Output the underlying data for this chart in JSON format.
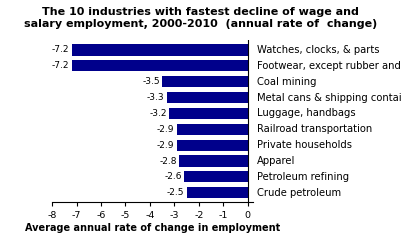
{
  "title": "The 10 industries with fastest decline of wage and\nsalary employment, 2000-2010  (annual rate of  change)",
  "xlabel": "Average annual rate of change in employment",
  "categories": [
    "Watches, clocks, & parts",
    "Footwear, except rubber and plastic",
    "Coal mining",
    "Metal cans & shipping containers",
    "Luggage, handbags",
    "Railroad transportation",
    "Private households",
    "Apparel",
    "Petroleum refining",
    "Crude petroleum"
  ],
  "values": [
    -7.2,
    -7.2,
    -3.5,
    -3.3,
    -3.2,
    -2.9,
    -2.9,
    -2.8,
    -2.6,
    -2.5
  ],
  "bar_color": "#00008B",
  "xlim": [
    -8,
    0.2
  ],
  "xticks": [
    -8,
    -7,
    -6,
    -5,
    -4,
    -3,
    -2,
    -1,
    0
  ],
  "title_fontsize": 8.0,
  "label_fontsize": 6.8,
  "value_fontsize": 6.5,
  "xlabel_fontsize": 7.0,
  "cat_fontsize": 7.2
}
